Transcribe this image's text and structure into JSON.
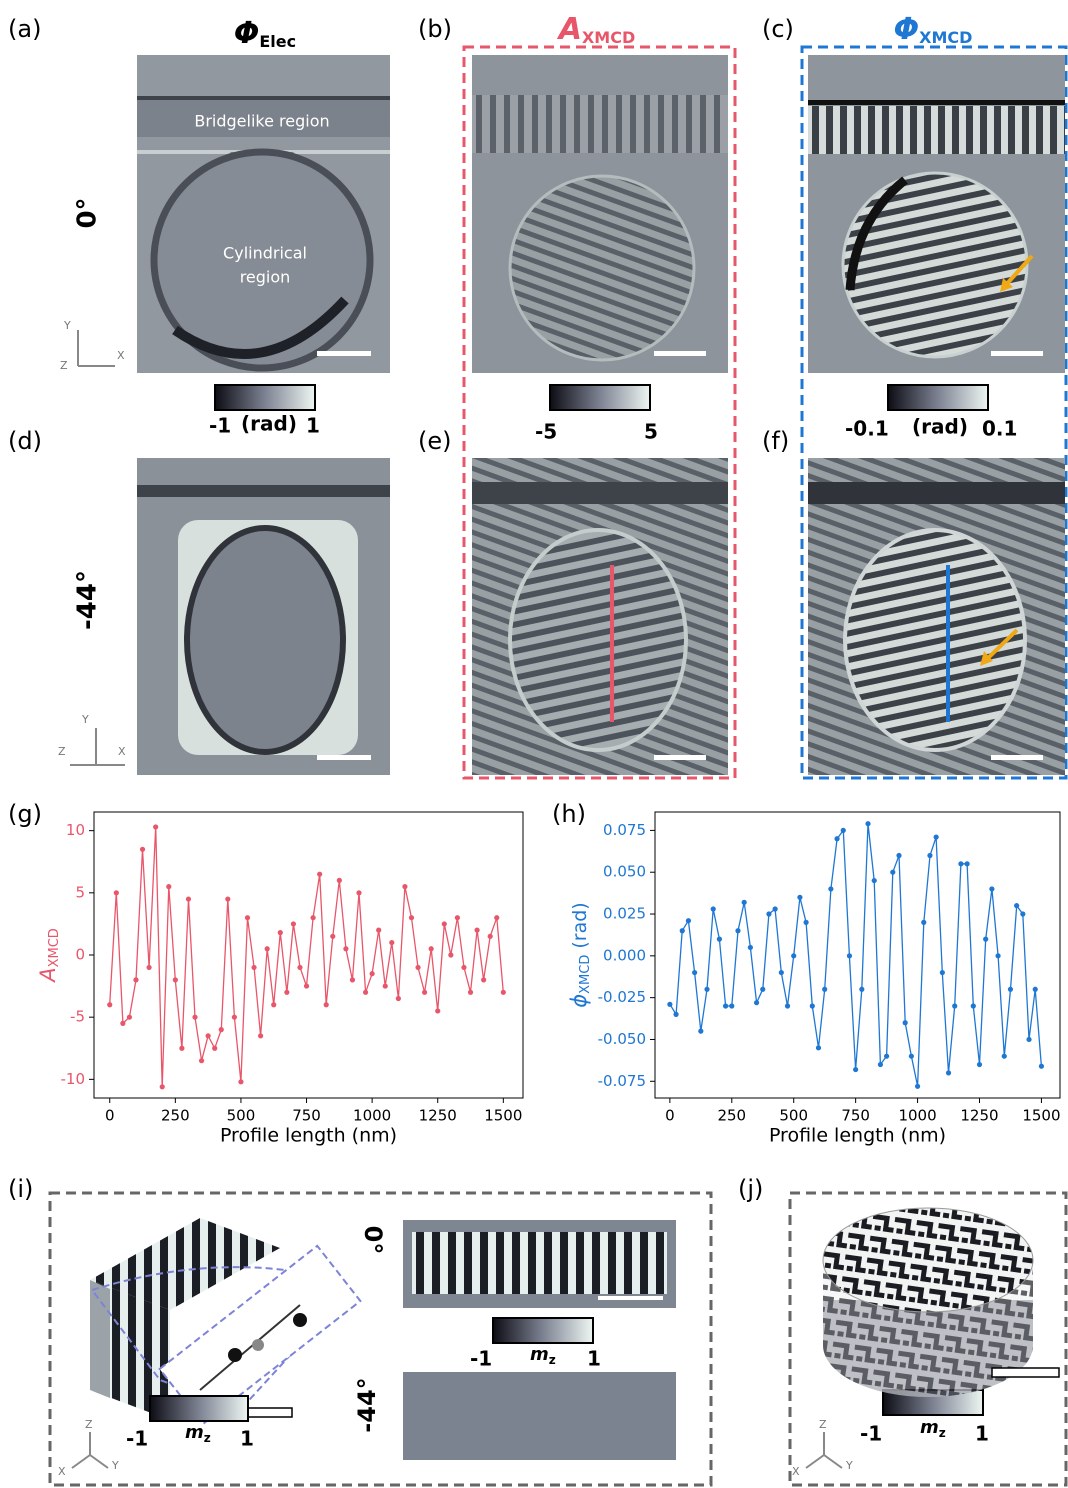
{
  "panels": [
    "(a)",
    "(b)",
    "(c)",
    "(d)",
    "(e)",
    "(f)",
    "(g)",
    "(h)",
    "(i)",
    "(j)"
  ],
  "headers": [
    {
      "symbol": "Φ",
      "sub": "Elec"
    },
    {
      "symbol": "A",
      "sub": "XMCD"
    },
    {
      "symbol": "Φ",
      "sub": "XMCD"
    }
  ],
  "angles": [
    "0°",
    "-44°"
  ],
  "regions": {
    "bridge": "Bridgelike region",
    "cylinder": [
      "Cylindrical",
      "region"
    ]
  },
  "triad": {
    "x": "X",
    "y": "Y",
    "z": "Z"
  },
  "colorbars": [
    {
      "ticks": [
        -1,
        1
      ],
      "unit": "(rad)"
    },
    {
      "ticks": [
        -5,
        5
      ]
    },
    {
      "ticks": [
        -0.1,
        0.1
      ],
      "unit": "(rad)"
    },
    {
      "ticks": [
        -1,
        1
      ],
      "symbol": "m",
      "sub": "z"
    }
  ],
  "chart_data": [
    {
      "type": "line",
      "color": "#e8566a",
      "xlabel": "Profile length (nm)",
      "ylabel": {
        "symbol": "A",
        "sub": "XMCD"
      },
      "xlim": [
        -60,
        1575
      ],
      "ylim": [
        -11.5,
        11.5
      ],
      "xticks": [
        0,
        250,
        500,
        750,
        1000,
        1250,
        1500
      ],
      "yticks": [
        -10,
        -5,
        0,
        5,
        10
      ],
      "x": [
        0,
        25,
        50,
        75,
        100,
        125,
        150,
        175,
        200,
        225,
        250,
        275,
        300,
        325,
        350,
        375,
        400,
        425,
        450,
        475,
        500,
        525,
        550,
        575,
        600,
        625,
        650,
        675,
        700,
        725,
        750,
        775,
        800,
        825,
        850,
        875,
        900,
        925,
        950,
        975,
        1000,
        1025,
        1050,
        1075,
        1100,
        1125,
        1150,
        1175,
        1200,
        1225,
        1250,
        1275,
        1300,
        1325,
        1350,
        1375,
        1400,
        1425,
        1450,
        1475,
        1500
      ],
      "values": [
        -4,
        5,
        -5.5,
        -5,
        -2,
        8.5,
        -1,
        10.3,
        -10.6,
        5.5,
        -2,
        -7.5,
        4.5,
        -5,
        -8.5,
        -6.5,
        -7.5,
        -6,
        4.5,
        -5,
        -10.2,
        3,
        -1,
        -6.5,
        0.5,
        -4,
        1.8,
        -3,
        2.5,
        -1,
        -2.5,
        3,
        6.5,
        -4,
        1.5,
        6,
        0.5,
        -2,
        5,
        -3,
        -1.5,
        2,
        -2.5,
        1,
        -3.5,
        5.5,
        3,
        -1,
        -3,
        0.5,
        -4.5,
        2.5,
        0,
        3,
        -1,
        -3,
        2,
        -2,
        1.5,
        3,
        -3
      ]
    },
    {
      "type": "line",
      "color": "#1f77d4",
      "xlabel": "Profile length (nm)",
      "ylabel": {
        "symbol": "ϕ",
        "sub": "XMCD",
        "suffix": "(rad)"
      },
      "xlim": [
        -60,
        1575
      ],
      "ylim": [
        -0.085,
        0.086
      ],
      "xticks": [
        0,
        250,
        500,
        750,
        1000,
        1250,
        1500
      ],
      "yticks": [
        -0.075,
        {
          "value": -0.05,
          "label": "-0.050"
        },
        -0.025,
        {
          "value": 0,
          "label": "0.000"
        },
        0.025,
        {
          "value": 0.05,
          "label": "0.050"
        },
        0.075
      ],
      "x": [
        0,
        25,
        50,
        75,
        100,
        125,
        150,
        175,
        200,
        225,
        250,
        275,
        300,
        325,
        350,
        375,
        400,
        425,
        450,
        475,
        500,
        525,
        550,
        575,
        600,
        625,
        650,
        675,
        700,
        725,
        750,
        775,
        800,
        825,
        850,
        875,
        900,
        925,
        950,
        975,
        1000,
        1025,
        1050,
        1075,
        1100,
        1125,
        1150,
        1175,
        1200,
        1225,
        1250,
        1275,
        1300,
        1325,
        1350,
        1375,
        1400,
        1425,
        1450,
        1475,
        1500
      ],
      "values": [
        -0.029,
        -0.035,
        0.015,
        0.021,
        -0.01,
        -0.045,
        -0.02,
        0.028,
        0.01,
        -0.03,
        -0.03,
        0.015,
        0.032,
        0.005,
        -0.028,
        -0.02,
        0.025,
        0.028,
        -0.01,
        -0.03,
        0,
        0.035,
        0.02,
        -0.03,
        -0.055,
        -0.02,
        0.04,
        0.07,
        0.075,
        0,
        -0.068,
        -0.02,
        0.079,
        0.045,
        -0.065,
        -0.06,
        0.05,
        0.06,
        -0.04,
        -0.06,
        -0.078,
        0.02,
        0.06,
        0.071,
        -0.01,
        -0.07,
        -0.03,
        0.055,
        0.055,
        -0.03,
        -0.065,
        0.01,
        0.04,
        0,
        -0.06,
        -0.02,
        0.03,
        0.025,
        -0.05,
        -0.02,
        -0.066
      ]
    }
  ]
}
